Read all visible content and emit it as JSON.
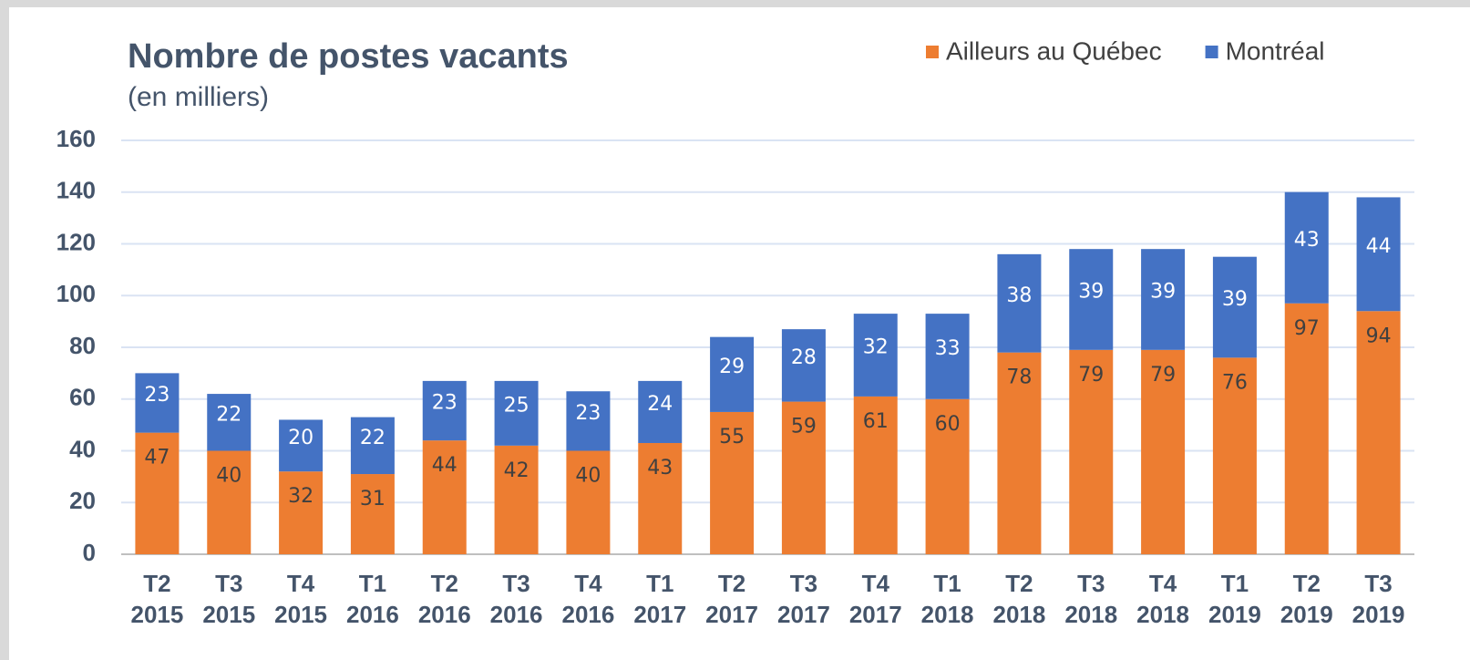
{
  "chart_data": {
    "type": "stacked_bar",
    "title": "Nombre de postes vacants",
    "subtitle": "(en milliers)",
    "categories": [
      "T2 2015",
      "T3 2015",
      "T4 2015",
      "T1 2016",
      "T2 2016",
      "T3 2016",
      "T4 2016",
      "T1 2017",
      "T2 2017",
      "T3 2017",
      "T4 2017",
      "T1 2018",
      "T2 2018",
      "T3 2018",
      "T4 2018",
      "T1 2019",
      "T2 2019",
      "T3 2019"
    ],
    "series": [
      {
        "name": "Ailleurs au Québec",
        "color": "#ed7d31",
        "values": [
          47,
          40,
          32,
          31,
          44,
          42,
          40,
          43,
          55,
          59,
          61,
          60,
          78,
          79,
          79,
          76,
          97,
          94
        ]
      },
      {
        "name": "Montréal",
        "color": "#4472c4",
        "values": [
          23,
          22,
          20,
          22,
          23,
          25,
          23,
          24,
          29,
          28,
          32,
          33,
          38,
          39,
          39,
          39,
          43,
          44
        ]
      }
    ],
    "ylim": [
      0,
      160
    ],
    "yticks": [
      0,
      20,
      40,
      60,
      80,
      100,
      120,
      140,
      160
    ],
    "grid": true,
    "legend": "top-right"
  }
}
